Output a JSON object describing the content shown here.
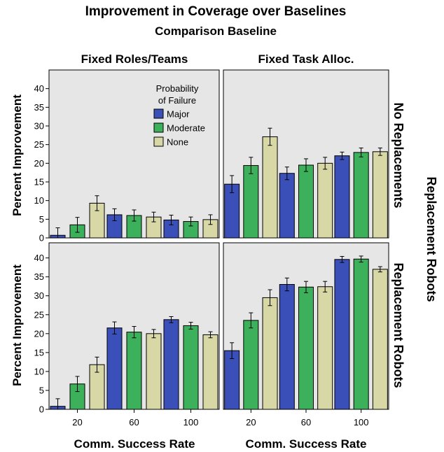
{
  "chart_data": {
    "type": "bar",
    "title": "Improvement in Coverage over Baselines",
    "subtitle": "Comparison Baseline",
    "col_labels": [
      "Fixed Roles/Teams",
      "Fixed Task Alloc."
    ],
    "row_labels": [
      "No Replacements",
      "Replacement Robots"
    ],
    "right_label": "Replacement Robots",
    "ylabel": "Percent Improvement",
    "xlabel": "Comm. Success Rate",
    "categories": [
      "20",
      "60",
      "100"
    ],
    "ylim_top": [
      0,
      45
    ],
    "yticks_top": [
      0,
      5,
      10,
      15,
      20,
      25,
      30,
      35,
      40
    ],
    "ylim_bottom": [
      0,
      44
    ],
    "yticks_bottom": [
      0,
      5,
      10,
      15,
      20,
      25,
      30,
      35,
      40
    ],
    "legend": {
      "title_lines": [
        "Probability",
        "of Failure"
      ],
      "entries": [
        "Major",
        "Moderate",
        "None"
      ],
      "placement": "top-right of top-left panel"
    },
    "series_colors": [
      "#3a4fb8",
      "#3cb05a",
      "#d8d7a6"
    ],
    "panels": [
      {
        "row": 0,
        "col": 0,
        "series": [
          {
            "name": "Major",
            "values": [
              0.7,
              6.2,
              4.8
            ],
            "err": [
              2.0,
              1.6,
              1.3
            ]
          },
          {
            "name": "Moderate",
            "values": [
              3.5,
              6.0,
              4.4
            ],
            "err": [
              2.0,
              1.5,
              1.2
            ]
          },
          {
            "name": "None",
            "values": [
              9.3,
              5.6,
              4.9
            ],
            "err": [
              2.0,
              1.3,
              1.3
            ]
          }
        ]
      },
      {
        "row": 0,
        "col": 1,
        "series": [
          {
            "name": "Major",
            "values": [
              14.4,
              17.3,
              22.0
            ],
            "err": [
              2.3,
              1.7,
              1.0
            ]
          },
          {
            "name": "Moderate",
            "values": [
              19.4,
              19.5,
              22.9
            ],
            "err": [
              2.2,
              1.7,
              1.2
            ]
          },
          {
            "name": "None",
            "values": [
              27.1,
              20.0,
              23.1
            ],
            "err": [
              2.3,
              1.6,
              1.0
            ]
          }
        ]
      },
      {
        "row": 1,
        "col": 0,
        "series": [
          {
            "name": "Major",
            "values": [
              0.8,
              21.5,
              23.7
            ],
            "err": [
              2.0,
              1.6,
              0.8
            ]
          },
          {
            "name": "Moderate",
            "values": [
              6.7,
              20.4,
              22.1
            ],
            "err": [
              2.0,
              1.5,
              0.9
            ]
          },
          {
            "name": "None",
            "values": [
              11.8,
              20.0,
              19.7
            ],
            "err": [
              2.0,
              1.1,
              0.8
            ]
          }
        ]
      },
      {
        "row": 1,
        "col": 1,
        "series": [
          {
            "name": "Major",
            "values": [
              15.5,
              33.0,
              39.6
            ],
            "err": [
              2.1,
              1.7,
              0.8
            ]
          },
          {
            "name": "Moderate",
            "values": [
              23.5,
              32.3,
              39.7
            ],
            "err": [
              2.0,
              1.5,
              0.8
            ]
          },
          {
            "name": "None",
            "values": [
              29.5,
              32.4,
              37.0
            ],
            "err": [
              2.1,
              1.4,
              0.7
            ]
          }
        ]
      }
    ]
  }
}
